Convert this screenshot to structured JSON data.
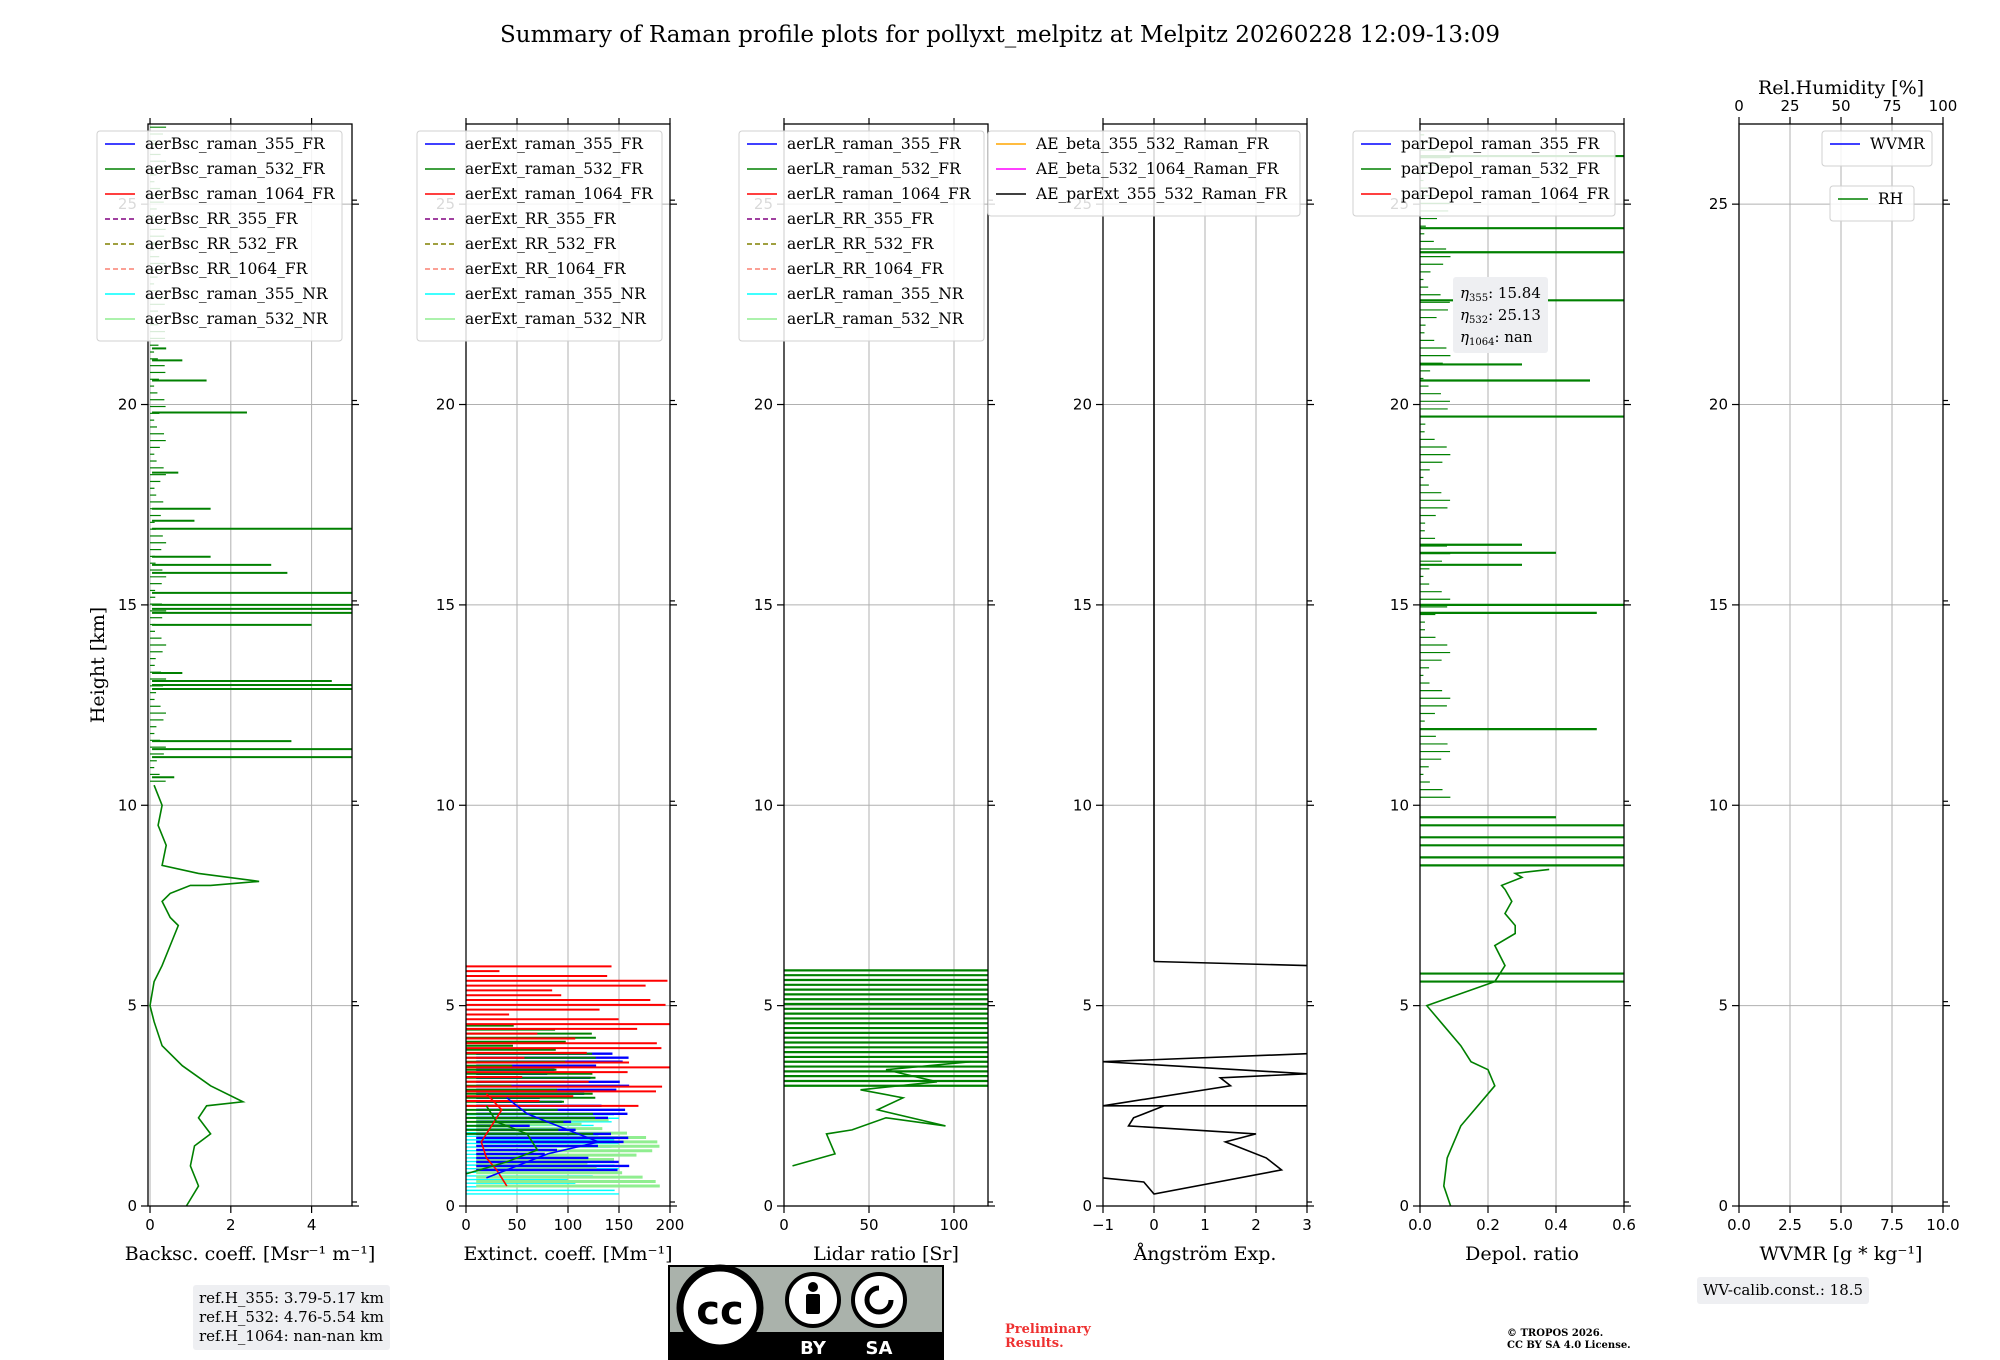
{
  "title": "Summary of Raman profile plots for pollyxt_melpitz at Melpitz 20260228 12:09-13:09",
  "colors": {
    "blue": "#0000ff",
    "green": "#008000",
    "red": "#ff0000",
    "purple": "#800080",
    "olive": "#808000",
    "salmon": "#fa8072",
    "cyan": "#00ffff",
    "lightgreen": "#90ee90",
    "orange": "#ffa500",
    "magenta": "#ff00ff",
    "black": "#000000"
  },
  "chart_data": [
    {
      "type": "line",
      "name": "backscatter",
      "xlabel": "Backsc. coeff. [Msr⁻¹ m⁻¹]",
      "ylabel": "Height [km]",
      "xlim": [
        -0.05,
        5
      ],
      "ylim": [
        0,
        27
      ],
      "xticks": [
        "0",
        "2",
        "4"
      ],
      "yticks": [
        "0",
        "5",
        "10",
        "15",
        "20",
        "25"
      ],
      "legend": [
        "aerBsc_raman_355_FR",
        "aerBsc_raman_532_FR",
        "aerBsc_raman_1064_FR",
        "aerBsc_RR_355_FR",
        "aerBsc_RR_532_FR",
        "aerBsc_RR_1064_FR",
        "aerBsc_raman_355_NR",
        "aerBsc_raman_532_NR"
      ],
      "series": [
        {
          "name": "aerBsc_raman_532_FR",
          "x": [
            0.9,
            1.2,
            1.0,
            1.1,
            1.5,
            1.2,
            1.4,
            2.3,
            1.5,
            0.8,
            0.3,
            0.1,
            0.0,
            0.1,
            0.3,
            0.5,
            0.7,
            0.5,
            0.4,
            0.3,
            0.5,
            1.0,
            1.5,
            2.7,
            1.2,
            0.3,
            0.4,
            0.2,
            0.3,
            0.1
          ],
          "y": [
            0,
            0.5,
            1.0,
            1.5,
            1.8,
            2.2,
            2.5,
            2.6,
            3.0,
            3.5,
            4.0,
            4.6,
            5.0,
            5.6,
            6.0,
            6.5,
            7.0,
            7.2,
            7.4,
            7.6,
            7.8,
            8.0,
            8.0,
            8.1,
            8.3,
            8.5,
            9.0,
            9.5,
            10.0,
            10.5
          ]
        }
      ]
    },
    {
      "type": "line",
      "name": "extinction",
      "xlabel": "Extinct. coeff. [Mm⁻¹]",
      "xlim": [
        0,
        200
      ],
      "ylim": [
        0,
        27
      ],
      "xticks": [
        "0",
        "50",
        "100",
        "150",
        "200"
      ],
      "yticks": [
        "0",
        "5",
        "10",
        "15",
        "20",
        "25"
      ],
      "legend": [
        "aerExt_raman_355_FR",
        "aerExt_raman_532_FR",
        "aerExt_raman_1064_FR",
        "aerExt_RR_355_FR",
        "aerExt_RR_532_FR",
        "aerExt_RR_1064_FR",
        "aerExt_raman_355_NR",
        "aerExt_raman_532_NR"
      ]
    },
    {
      "type": "line",
      "name": "lidar_ratio",
      "xlabel": "Lidar ratio [Sr]",
      "xlim": [
        0,
        120
      ],
      "ylim": [
        0,
        27
      ],
      "xticks": [
        "0",
        "50",
        "100"
      ],
      "yticks": [
        "0",
        "5",
        "10",
        "15",
        "20",
        "25"
      ],
      "legend": [
        "aerLR_raman_355_FR",
        "aerLR_raman_532_FR",
        "aerLR_raman_1064_FR",
        "aerLR_RR_355_FR",
        "aerLR_RR_532_FR",
        "aerLR_RR_1064_FR",
        "aerLR_raman_355_NR",
        "aerLR_raman_532_NR"
      ],
      "series": [
        {
          "name": "aerLR_raman_532_FR",
          "x": [
            5,
            30,
            25,
            40,
            60,
            95,
            55,
            70,
            45,
            90,
            60,
            110
          ],
          "y": [
            1.0,
            1.3,
            1.8,
            1.9,
            2.2,
            2.0,
            2.4,
            2.7,
            2.9,
            3.1,
            3.4,
            3.6
          ]
        }
      ]
    },
    {
      "type": "line",
      "name": "angstrom",
      "xlabel": "Ångström Exp.",
      "xlim": [
        -1,
        3
      ],
      "ylim": [
        0,
        27
      ],
      "xticks": [
        "−1",
        "0",
        "1",
        "2",
        "3"
      ],
      "yticks": [
        "0",
        "5",
        "10",
        "15",
        "20",
        "25"
      ],
      "legend": [
        "AE_beta_355_532_Raman_FR",
        "AE_beta_532_1064_Raman_FR",
        "AE_parExt_355_532_Raman_FR"
      ],
      "series": [
        {
          "name": "AE_parExt_355_532_Raman_FR",
          "x": [
            -1,
            -0.2,
            0,
            2.5,
            2.4,
            2.2,
            1.6,
            1.4,
            2.0,
            -0.5,
            -0.4,
            0.2,
            3.0,
            -1,
            1.5,
            1.3,
            3,
            -1,
            3
          ],
          "y": [
            0.7,
            0.6,
            0.3,
            0.9,
            1.0,
            1.2,
            1.5,
            1.6,
            1.8,
            2.0,
            2.2,
            2.5,
            2.5,
            2.5,
            3.0,
            3.2,
            3.3,
            3.6,
            3.8
          ]
        }
      ]
    },
    {
      "type": "line",
      "name": "depolarization",
      "xlabel": "Depol. ratio",
      "xlim": [
        0,
        0.6
      ],
      "ylim": [
        0,
        27
      ],
      "xticks": [
        "0.0",
        "0.2",
        "0.4",
        "0.6"
      ],
      "yticks": [
        "0",
        "5",
        "10",
        "15",
        "20",
        "25"
      ],
      "legend": [
        "parDepol_raman_355_FR",
        "parDepol_raman_532_FR",
        "parDepol_raman_1064_FR"
      ],
      "annotation": [
        {
          "sym": "η",
          "sub": "355",
          "val": ": 15.84"
        },
        {
          "sym": "η",
          "sub": "532",
          "val": ": 25.13"
        },
        {
          "sym": "η",
          "sub": "1064",
          "val": ": nan"
        }
      ],
      "series": [
        {
          "name": "parDepol_raman_532_FR",
          "x": [
            0.09,
            0.07,
            0.08,
            0.12,
            0.22,
            0.2,
            0.15,
            0.12,
            0.07,
            0.03,
            0.02,
            0.22,
            0.25,
            0.22,
            0.28,
            0.28,
            0.25,
            0.27,
            0.25,
            0.24,
            0.3,
            0.28,
            0.38
          ],
          "y": [
            0,
            0.5,
            1.2,
            2.0,
            3.0,
            3.4,
            3.6,
            4.0,
            4.5,
            4.9,
            5.0,
            5.6,
            6.0,
            6.5,
            6.8,
            7.0,
            7.3,
            7.6,
            7.9,
            8.0,
            8.2,
            8.3,
            8.4
          ]
        }
      ]
    },
    {
      "type": "line",
      "name": "water_vapor",
      "xlabel": "WVMR [g * kg⁻¹]",
      "xlim": [
        0,
        10
      ],
      "ylim": [
        0,
        27
      ],
      "xticks": [
        "0.0",
        "2.5",
        "5.0",
        "7.5",
        "10.0"
      ],
      "yticks": [
        "0",
        "5",
        "10",
        "15",
        "20",
        "25"
      ],
      "top_label": "Rel.Humidity [%]",
      "top_ticks": [
        "0",
        "25",
        "50",
        "75",
        "100"
      ],
      "legend": [
        "WVMR",
        "RH"
      ],
      "series": []
    }
  ],
  "notes": {
    "ref_h": [
      "ref.H_355: 3.79-5.17 km",
      "ref.H_532: 4.76-5.54 km",
      "ref.H_1064: nan-nan km"
    ],
    "wv_calib": "WV-calib.const.: 18.5",
    "preliminary": [
      "Preliminary",
      "Results."
    ],
    "copyright": [
      "© TROPOS 2026.",
      "CC BY SA 4.0 License."
    ],
    "cc_logo": {
      "cc": "cc",
      "by": "BY",
      "sa": "SA"
    }
  }
}
